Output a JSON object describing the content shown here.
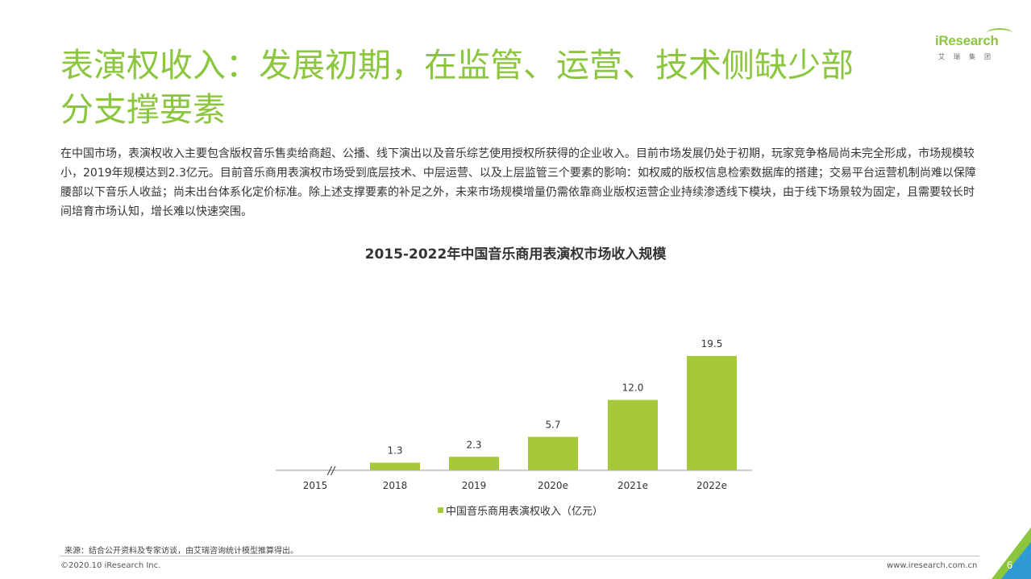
{
  "title": "表演权收入：发展初期，在监管、运营、技术侧缺少部分支撑要素",
  "logo": {
    "brand": "iResearch",
    "sub": "艾瑞集团"
  },
  "intro": "在中国市场，表演权收入主要包含版权音乐售卖给商超、公播、线下演出以及音乐综艺使用授权所获得的企业收入。目前市场发展仍处于初期，玩家竞争格局尚未完全形成，市场规模较小，2019年规模达到2.3亿元。目前音乐商用表演权市场受到底层技术、中层运营、以及上层监管三个要素的影响：如权威的版权信息检索数据库的搭建；交易平台运营机制尚难以保障腰部以下音乐人收益；尚未出台体系化定价标准。除上述支撑要素的补足之外，未来市场规模增量仍需依靠商业版权运营企业持续渗透线下模块，由于线下场景较为固定，且需要较长时间培育市场认知，增长难以快速突围。",
  "chart_data": {
    "type": "bar",
    "title": "2015-2022年中国音乐商用表演权市场收入规模",
    "categories": [
      "2015",
      "2018",
      "2019",
      "2020e",
      "2021e",
      "2022e"
    ],
    "series": [
      {
        "name": "中国音乐商用表演权收入（亿元）",
        "values": [
          null,
          1.3,
          2.3,
          5.7,
          12.0,
          19.5
        ]
      }
    ],
    "data_labels": [
      "",
      "1.3",
      "2.3",
      "5.7",
      "12.0",
      "19.5"
    ],
    "axis_break_marker": "//",
    "bar_color": "#a5c93a",
    "legend_position": "bottom",
    "grid": false
  },
  "source": "来源：结合公开资料及专家访谈，由艾瑞咨询统计模型推算得出。",
  "copyright": "©2020.10 iResearch Inc.",
  "website": "www.iresearch.com.cn",
  "page_number": "6",
  "colors": {
    "accent": "#8cc63f",
    "bar": "#a5c93a",
    "corner_light": "#8cc63f",
    "corner_dark": "#2e9bd6"
  }
}
